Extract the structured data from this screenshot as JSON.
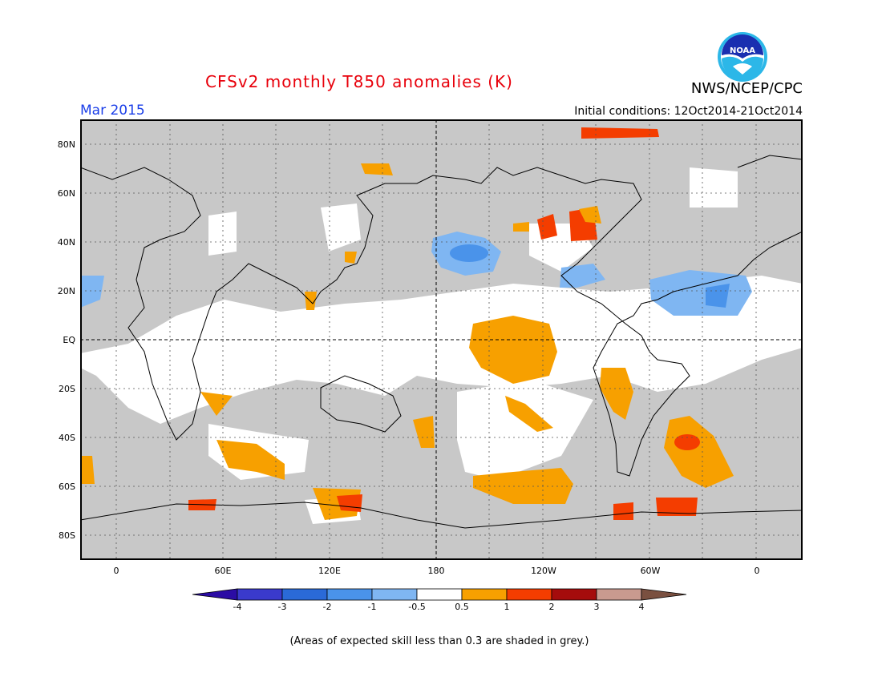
{
  "title": "CFSv2 monthly T850 anomalies (K)",
  "agency": "NWS/NCEP/CPC",
  "logo_text": "NOAA",
  "month": "Mar 2015",
  "initial_conditions": "Initial conditions: 12Oct2014-21Oct2014",
  "lat_labels": [
    "80N",
    "60N",
    "40N",
    "20N",
    "EQ",
    "20S",
    "40S",
    "60S",
    "80S"
  ],
  "lon_labels": [
    "0",
    "60E",
    "120E",
    "180",
    "120W",
    "60W",
    "0"
  ],
  "colorbar": {
    "labels": [
      "-4",
      "-3",
      "-2",
      "-1",
      "-0.5",
      "0.5",
      "1",
      "2",
      "3",
      "4"
    ],
    "colors": [
      "#2b0ca4",
      "#3a3acc",
      "#2a6ad8",
      "#4a93ea",
      "#7fb6f2",
      "#ffffff",
      "#f7a000",
      "#f43d00",
      "#a50c0c",
      "#c99a8f",
      "#7a5040"
    ]
  },
  "skill_note": "(Areas of expected skill less than 0.3 are shaded in grey.)"
}
